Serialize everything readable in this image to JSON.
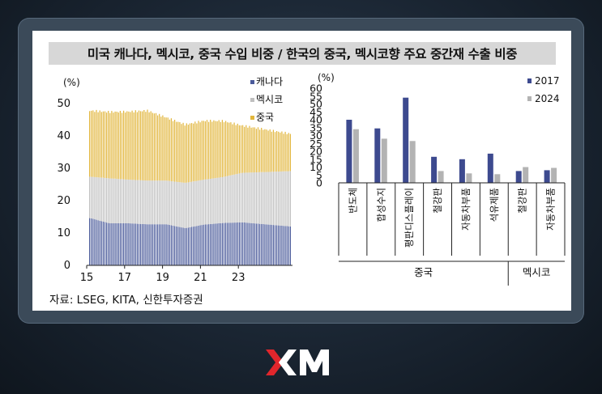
{
  "title": "미국 캐나다, 멕시코, 중국 수입 비중 / 한국의 중국, 멕시코향 주요 중간재 수출 비중",
  "source": "자료: LSEG, KITA, 신한투자증권",
  "brand": "XM",
  "colors": {
    "canada": "#4a5a9a",
    "mexico": "#c0c0c0",
    "china": "#e2b63c",
    "s2017": "#3d4a8f",
    "s2024": "#b3b3b3",
    "logo_red": "#e0262c"
  },
  "chart_data": [
    {
      "type": "area",
      "stacked": true,
      "ylabel": "(%)",
      "ylim": [
        0,
        50
      ],
      "yticks": [
        0,
        10,
        20,
        30,
        40,
        50
      ],
      "x_ticks": [
        "15",
        "17",
        "19",
        "21",
        "23"
      ],
      "x": [
        "15",
        "16",
        "17",
        "18",
        "19",
        "20",
        "21",
        "22",
        "23",
        "24"
      ],
      "series": [
        {
          "name": "캐나다",
          "values": [
            14.6,
            13.0,
            13.0,
            12.7,
            12.7,
            11.5,
            12.6,
            13.1,
            13.3,
            12.8
          ]
        },
        {
          "name": "멕시코",
          "values": [
            12.8,
            13.9,
            13.5,
            13.5,
            13.5,
            14.0,
            13.9,
            14.2,
            15.3,
            16.0
          ]
        },
        {
          "name": "중국",
          "values": [
            20.4,
            20.5,
            21.0,
            21.6,
            19.5,
            18.0,
            18.2,
            17.3,
            14.6,
            13.4
          ]
        }
      ],
      "legend": "top-right"
    },
    {
      "type": "bar",
      "ylabel": "(%)",
      "ylim": [
        0,
        60
      ],
      "yticks": [
        0,
        5,
        10,
        15,
        20,
        25,
        30,
        35,
        40,
        45,
        50,
        55,
        60
      ],
      "categories": [
        "반도체",
        "합성수지",
        "평판디스플레이",
        "철강판",
        "자동차부품",
        "석유제품",
        "철강판",
        "자동차부품"
      ],
      "groups": [
        {
          "name": "중국",
          "count": 6
        },
        {
          "name": "멕시코",
          "count": 2
        }
      ],
      "series": [
        {
          "name": "2017",
          "values": [
            40,
            34.5,
            54,
            16.5,
            15,
            18.5,
            7.5,
            8
          ]
        },
        {
          "name": "2024",
          "values": [
            34,
            28,
            26.5,
            7.5,
            6,
            5.5,
            10,
            9.5
          ]
        }
      ],
      "legend": "top-right"
    }
  ]
}
